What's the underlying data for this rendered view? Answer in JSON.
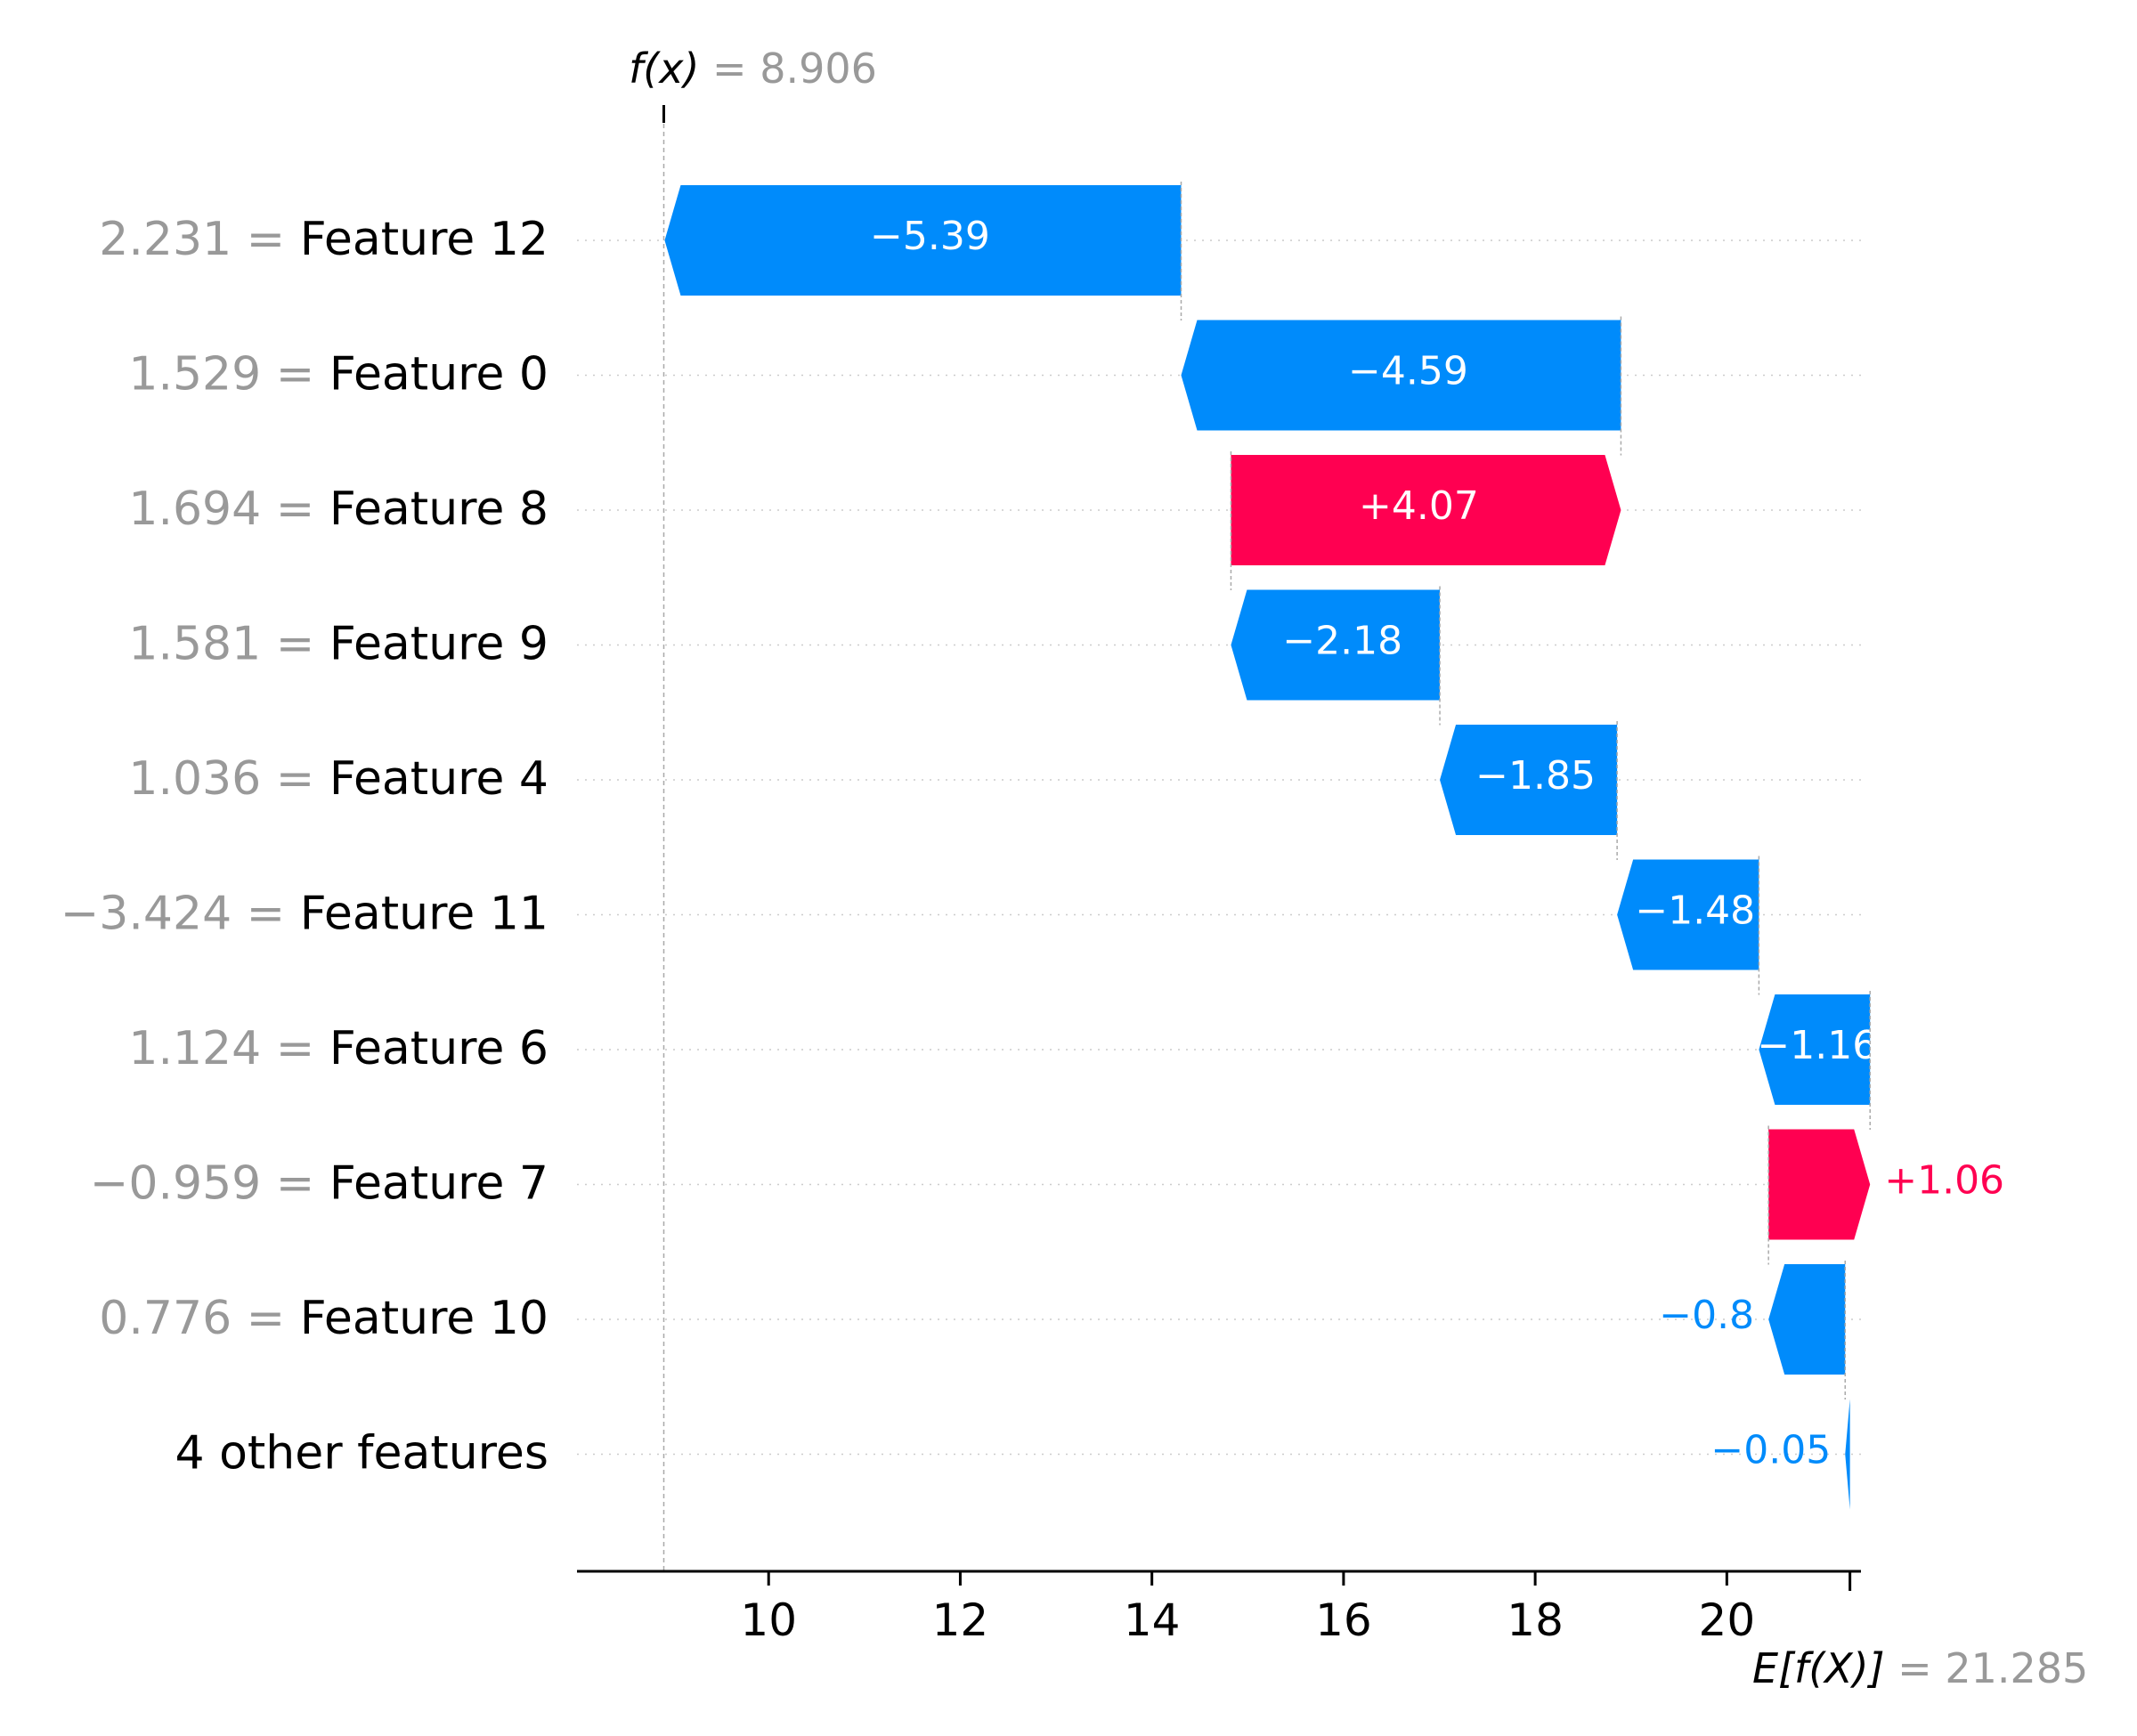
{
  "chart_data": {
    "type": "waterfall",
    "fx_label": "f(x)",
    "fx_value": "8.906",
    "ex_label": "E[f(X)]",
    "ex_value": "21.285",
    "base_value": 21.285,
    "final_value": 8.906,
    "xlim": [
      8.0,
      21.4
    ],
    "xticks": [
      10,
      12,
      14,
      16,
      18,
      20
    ],
    "colors": {
      "positive": "#ff0051",
      "negative": "#008bfb",
      "muted": "#999999"
    },
    "features": [
      {
        "value": "2.231",
        "name": "Feature 12",
        "shap": -5.39,
        "label": "−5.39"
      },
      {
        "value": "1.529",
        "name": "Feature 0",
        "shap": -4.59,
        "label": "−4.59"
      },
      {
        "value": "1.694",
        "name": "Feature 8",
        "shap": 4.07,
        "label": "+4.07"
      },
      {
        "value": "1.581",
        "name": "Feature 9",
        "shap": -2.18,
        "label": "−2.18"
      },
      {
        "value": "1.036",
        "name": "Feature 4",
        "shap": -1.85,
        "label": "−1.85"
      },
      {
        "value": "−3.424",
        "name": "Feature 11",
        "shap": -1.48,
        "label": "−1.48"
      },
      {
        "value": "1.124",
        "name": "Feature 6",
        "shap": -1.16,
        "label": "−1.16"
      },
      {
        "value": "−0.959",
        "name": "Feature 7",
        "shap": 1.06,
        "label": "+1.06"
      },
      {
        "value": "0.776",
        "name": "Feature 10",
        "shap": -0.8,
        "label": "−0.8"
      },
      {
        "value": "",
        "name": "4 other features",
        "shap": -0.05,
        "label": "−0.05"
      }
    ]
  }
}
